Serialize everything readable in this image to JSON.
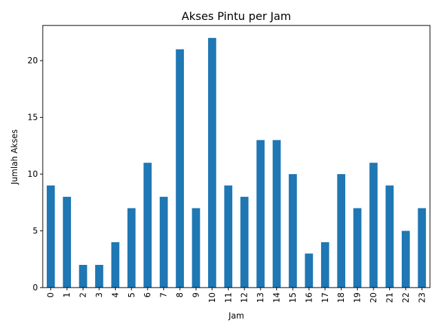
{
  "chart_data": {
    "type": "bar",
    "title": "Akses Pintu per Jam",
    "xlabel": "Jam",
    "ylabel": "Jumlah Akses",
    "categories": [
      "0",
      "1",
      "2",
      "3",
      "4",
      "5",
      "6",
      "7",
      "8",
      "9",
      "10",
      "11",
      "12",
      "13",
      "14",
      "15",
      "16",
      "17",
      "18",
      "19",
      "20",
      "21",
      "22",
      "23"
    ],
    "values": [
      9,
      8,
      2,
      2,
      4,
      7,
      11,
      8,
      21,
      7,
      22,
      9,
      8,
      13,
      13,
      10,
      3,
      4,
      10,
      7,
      11,
      9,
      5,
      7
    ],
    "ylim": [
      0,
      23.1
    ],
    "yticks": [
      "0",
      "5",
      "10",
      "15",
      "20"
    ],
    "grid": false,
    "legend": false,
    "colors": {
      "bar": "#1f77b4",
      "axes": "#000000",
      "background": "#ffffff"
    }
  }
}
